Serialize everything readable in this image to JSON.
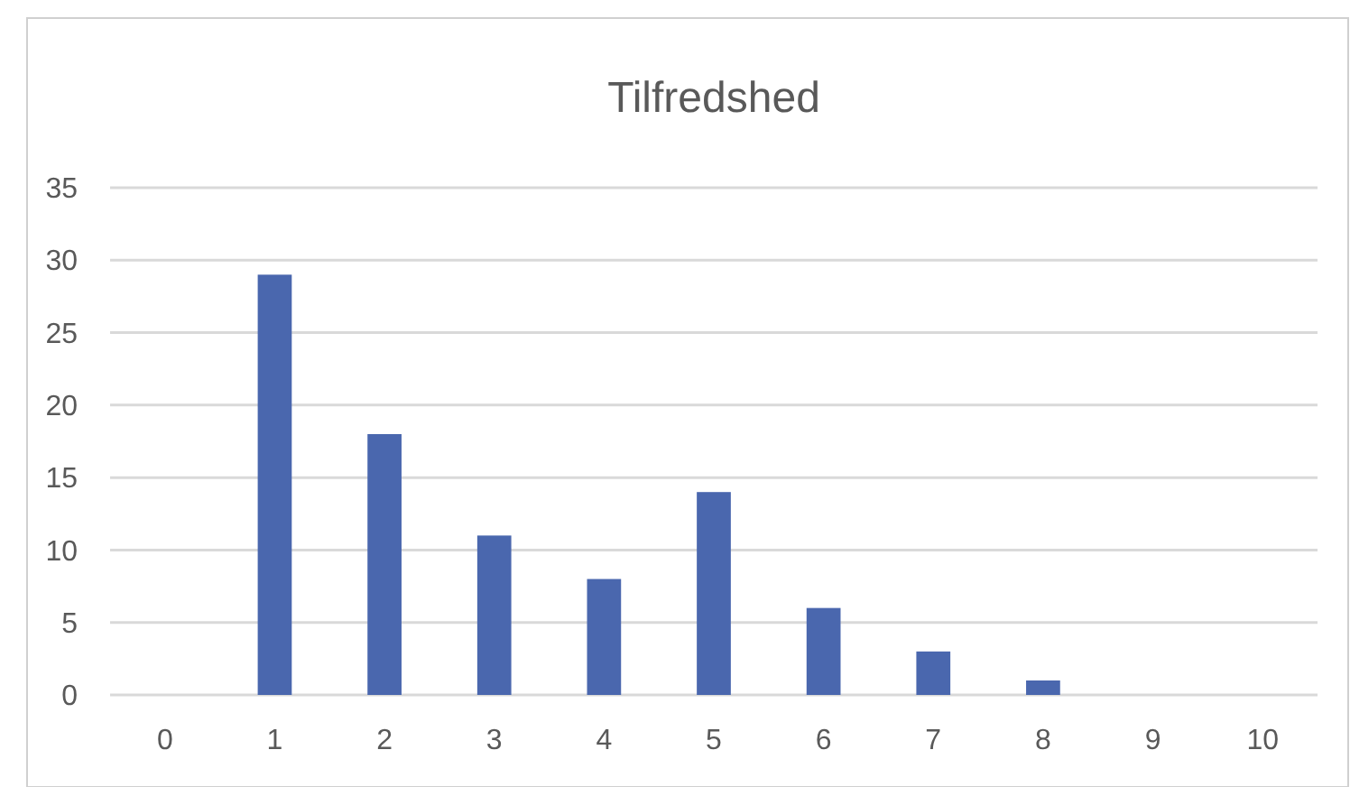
{
  "chart_data": {
    "type": "bar",
    "title": "Tilfredshed",
    "categories": [
      "0",
      "1",
      "2",
      "3",
      "4",
      "5",
      "6",
      "7",
      "8",
      "9",
      "10"
    ],
    "values": [
      0,
      29,
      18,
      11,
      8,
      14,
      6,
      3,
      1,
      0,
      0
    ],
    "color": "#4a67ae",
    "ylim": [
      0,
      35
    ],
    "yticks": [
      0,
      5,
      10,
      15,
      20,
      25,
      30,
      35
    ],
    "grid": "y"
  }
}
